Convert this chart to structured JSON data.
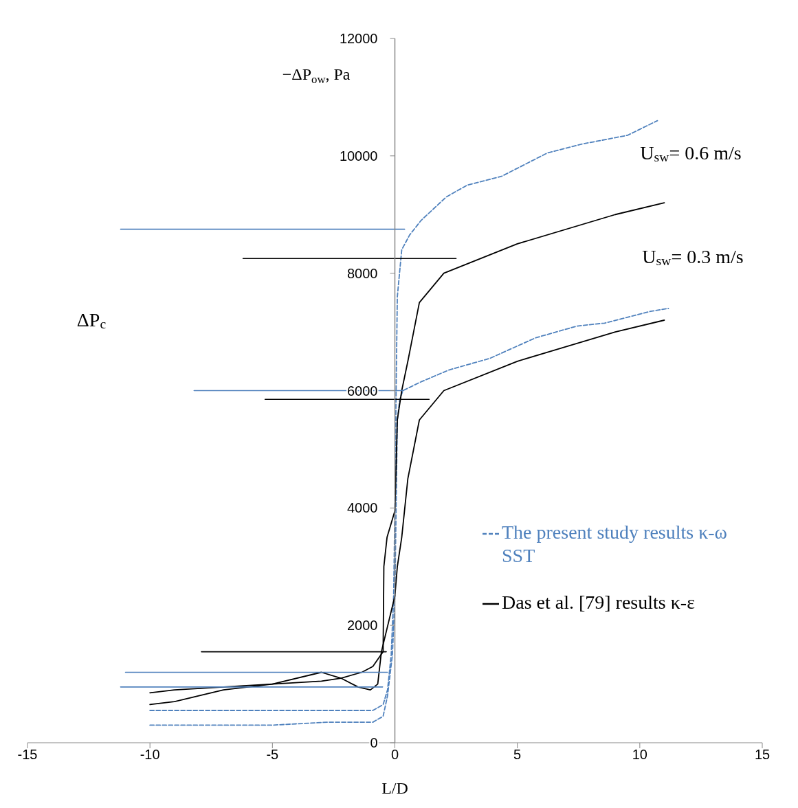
{
  "chart_data": {
    "type": "line",
    "xlabel": "L/D",
    "ylabel": "−ΔP$_{ow}$, Pa",
    "xlim": [
      -15,
      15
    ],
    "xticks": [
      -15,
      -10,
      -5,
      0,
      5,
      10,
      15
    ],
    "ylim": [
      0,
      12000
    ],
    "yticks": [
      0,
      2000,
      4000,
      6000,
      8000,
      10000,
      12000
    ],
    "legend": "bottom right",
    "annotations": [
      "U$_{sw}$= 0.6 m/s",
      "U$_{sw}$= 0.3 m/s",
      "ΔP$_{c}$"
    ],
    "series": [
      {
        "name": "The present study results κ-ω SST",
        "color": "#4f81bd",
        "line_style": "dashed",
        "x": [
          -10,
          -5,
          -0.9,
          -0.48,
          -0.3,
          -0.15,
          -0.05,
          0,
          0.05,
          0.1,
          0.28,
          0.6,
          1.07,
          2.1,
          2.95,
          4.35,
          6.23,
          7.63,
          9.5,
          10.72
        ],
        "values": [
          550,
          550,
          550,
          650,
          900,
          1500,
          2500,
          4000,
          6000,
          7600,
          8400,
          8650,
          8900,
          9300,
          9500,
          9650,
          10050,
          10200,
          10350,
          10600
        ]
      },
      {
        "color": "#4f81bd",
        "line_style": "dashed",
        "x": [
          -10,
          -5,
          -2.75,
          -0.9,
          -0.48,
          -0.3,
          -0.1,
          0,
          0.05,
          0.1,
          0.2,
          0.33,
          1.07,
          2.2,
          3.88,
          5.75,
          7.44,
          8.56,
          10.44,
          11.17
        ],
        "values": [
          300,
          300,
          350,
          350,
          450,
          800,
          1500,
          2500,
          4000,
          5500,
          5850,
          6000,
          6150,
          6350,
          6550,
          6900,
          7100,
          7150,
          7350,
          7400
        ]
      },
      {
        "name": "Das et al. [79] results κ-ε",
        "color": "#000000",
        "line_style": "solid",
        "x": [
          -10,
          -9,
          -7,
          -5,
          -3,
          -2.2,
          -1.35,
          -0.9,
          -0.48,
          -0.45,
          -0.32,
          0,
          0.1,
          0.28,
          0.53,
          1,
          2,
          5,
          9,
          11
        ],
        "values": [
          850,
          900,
          950,
          1000,
          1050,
          1100,
          1200,
          1300,
          1550,
          3000,
          3500,
          3950,
          5500,
          6000,
          6500,
          7500,
          8000,
          8500,
          9000,
          9200
        ]
      },
      {
        "color": "#000000",
        "line_style": "solid",
        "x": [
          -10,
          -9,
          -8,
          -7,
          -5,
          -3,
          -2.2,
          -1.5,
          -1,
          -0.7,
          -0.55,
          0,
          0.1,
          0.28,
          0.53,
          1,
          2,
          5,
          9,
          11
        ],
        "values": [
          650,
          700,
          800,
          900,
          1000,
          1200,
          1100,
          950,
          900,
          1000,
          1550,
          2500,
          3000,
          3500,
          4500,
          5500,
          6000,
          6500,
          7000,
          7200
        ]
      },
      {
        "color": "#4f81bd",
        "line_style": "solid",
        "x": [
          -11.2,
          0.4
        ],
        "values": [
          8750,
          8750
        ]
      },
      {
        "color": "#000000",
        "line_style": "solid",
        "x": [
          -6.2,
          2.5
        ],
        "values": [
          8250,
          8250
        ]
      },
      {
        "color": "#4f81bd",
        "line_style": "solid",
        "x": [
          -8.2,
          0.35
        ],
        "values": [
          6000,
          6000
        ]
      },
      {
        "color": "#000000",
        "line_style": "solid",
        "x": [
          -5.3,
          1.4
        ],
        "values": [
          5850,
          5850
        ]
      },
      {
        "color": "#000000",
        "line_style": "solid",
        "x": [
          -7.9,
          -0.35
        ],
        "values": [
          1550,
          1550
        ]
      },
      {
        "color": "#4f81bd",
        "line_style": "solid",
        "x": [
          -11,
          -0.3
        ],
        "values": [
          1200,
          1200
        ]
      },
      {
        "color": "#4f81bd",
        "line_style": "solid",
        "x": [
          -11.2,
          -0.5
        ],
        "values": [
          950,
          950
        ]
      }
    ]
  }
}
